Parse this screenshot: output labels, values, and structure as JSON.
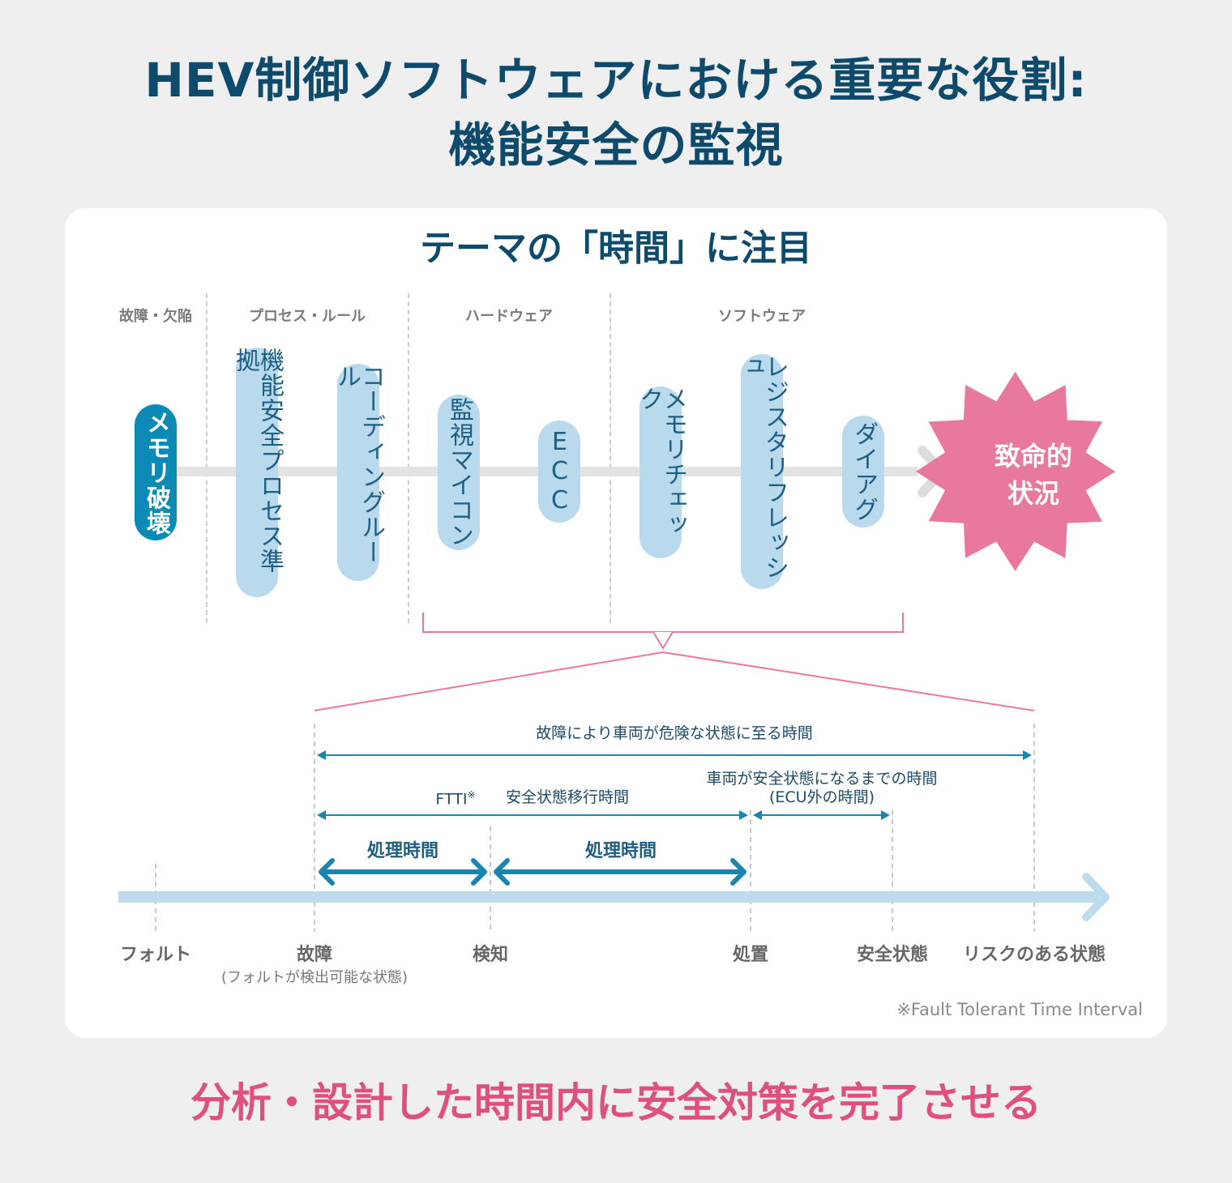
{
  "title": {
    "line1": "HEV制御ソフトウェアにおける重要な役割:",
    "line2": "機能安全の監視"
  },
  "theme": "テーマの「時間」に注目",
  "categories": [
    "故障・欠陥",
    "プロセス・ルール",
    "ハードウェア",
    "ソフトウェア"
  ],
  "pills": {
    "memory_destroy": "メモリ破壊",
    "process": "機能安全プロセス準拠",
    "coding": "コーディングルール",
    "watchdog": "監視マイコン",
    "ecc": "ECC",
    "memcheck": "メモリチェック",
    "register": "レジスタリフレッシュ",
    "diag": "ダイアグ"
  },
  "critical": {
    "line1": "致命的",
    "line2": "状況"
  },
  "intervals": {
    "total": "故障により車両が危険な状態に至る時間",
    "ftti": "FTTI",
    "ftti_mark": "※",
    "transition": "安全状態移行時間",
    "vehicle_safe_line1": "車両が安全状態になるまでの時間",
    "vehicle_safe_line2": "(ECU外の時間)",
    "proc1": "処理時間",
    "proc2": "処理時間"
  },
  "timeline": {
    "fault": "フォルト",
    "failure": "故障",
    "failure_note": "(フォルトが検出可能な状態)",
    "detect": "検知",
    "treat": "処置",
    "safe": "安全状態",
    "risk": "リスクのある状態"
  },
  "footnote": "※Fault Tolerant Time Interval",
  "conclusion": "分析・設計した時間内に安全対策を完了させる",
  "colors": {
    "navy": "#0d4a6b",
    "pill_light": "#b9d9ec",
    "pill_dark": "#0b8ab5",
    "accent_pink": "#e8799d",
    "conclusion_pink": "#e0507f",
    "arrow_blue": "#1a86b0",
    "timeline_blue": "#bcdcee"
  }
}
